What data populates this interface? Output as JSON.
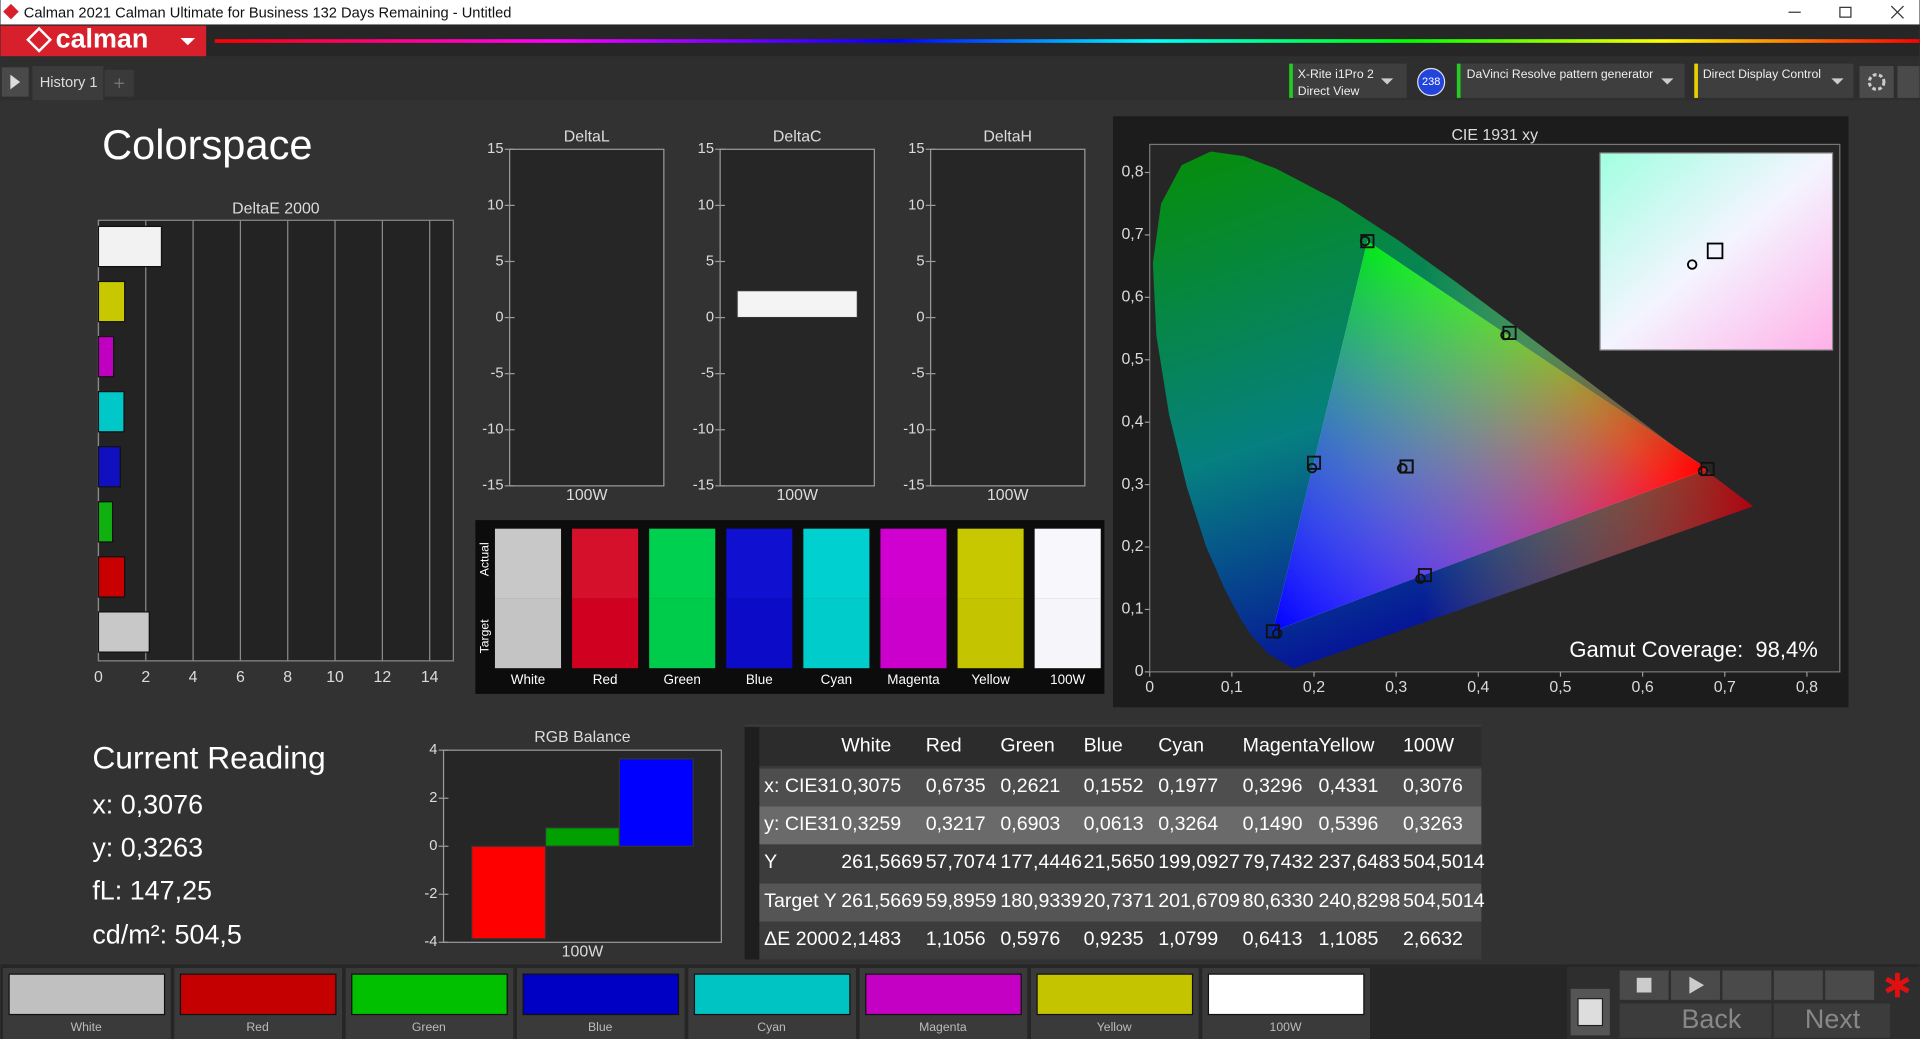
{
  "window": {
    "title": "Calman 2021 Calman Ultimate for Business 132 Days Remaining  - Untitled"
  },
  "toolbar": {
    "logo": "calman",
    "tab": "History 1",
    "meter": [
      "X-Rite i1Pro 2",
      "Direct View"
    ],
    "meter_badge": "238",
    "generator": "DaVinci Resolve pattern generator",
    "display": "Direct Display Control"
  },
  "page_title": "Colorspace",
  "chart_data": [
    {
      "type": "bar",
      "orientation": "horizontal",
      "title": "DeltaE 2000",
      "categories": [
        null,
        null,
        null,
        null,
        null,
        null,
        null,
        null
      ],
      "values": [
        2.6632,
        1.1085,
        0.6413,
        1.0799,
        0.9235,
        0.5976,
        1.1056,
        2.1483
      ],
      "colors": [
        "#f2f2f2",
        "#c8c800",
        "#c000c0",
        "#00c8c8",
        "#1010c0",
        "#10b010",
        "#c80000",
        "#c8c8c8"
      ],
      "xlim": [
        0,
        15
      ],
      "xticks": [
        0,
        2,
        4,
        6,
        8,
        10,
        12,
        14
      ],
      "grid": true
    },
    {
      "type": "bar",
      "title": "DeltaL",
      "categories": [
        "100W"
      ],
      "values": [
        0
      ],
      "color": "#f4f4f4",
      "ylim": [
        -15,
        15
      ],
      "yticks": [
        -15,
        -10,
        -5,
        0,
        5,
        10,
        15
      ]
    },
    {
      "type": "bar",
      "title": "DeltaC",
      "categories": [
        "100W"
      ],
      "values": [
        2.4
      ],
      "color": "#f4f4f4",
      "ylim": [
        -15,
        15
      ],
      "yticks": [
        -15,
        -10,
        -5,
        0,
        5,
        10,
        15
      ]
    },
    {
      "type": "bar",
      "title": "DeltaH",
      "categories": [
        "100W"
      ],
      "values": [
        0
      ],
      "color": "#f4f4f4",
      "ylim": [
        -15,
        15
      ],
      "yticks": [
        -15,
        -10,
        -5,
        0,
        5,
        10,
        15
      ]
    },
    {
      "type": "scatter",
      "title": "CIE 1931 xy",
      "xlim": [
        0,
        0.84
      ],
      "ylim": [
        0,
        0.845
      ],
      "xticks": [
        0,
        {
          "value": 0.1,
          "label": "0,1"
        },
        {
          "value": 0.2,
          "label": "0,2"
        },
        {
          "value": 0.3,
          "label": "0,3"
        },
        {
          "value": 0.4,
          "label": "0,4"
        },
        {
          "value": 0.5,
          "label": "0,5"
        },
        {
          "value": 0.6,
          "label": "0,6"
        },
        {
          "value": 0.7,
          "label": "0,7"
        },
        {
          "value": 0.8,
          "label": "0,8"
        }
      ],
      "yticks": [
        0,
        {
          "value": 0.1,
          "label": "0,1"
        },
        {
          "value": 0.2,
          "label": "0,2"
        },
        {
          "value": 0.3,
          "label": "0,3"
        },
        {
          "value": 0.4,
          "label": "0,4"
        },
        {
          "value": 0.5,
          "label": "0,5"
        },
        {
          "value": 0.6,
          "label": "0,6"
        },
        {
          "value": 0.7,
          "label": "0,7"
        },
        {
          "value": 0.8,
          "label": "0,8"
        }
      ],
      "series": [
        {
          "marker": "square",
          "x": [
            0.3127,
            0.679,
            0.265,
            0.15,
            0.2,
            0.335,
            0.438,
            0.3127
          ],
          "y": [
            0.329,
            0.325,
            0.69,
            0.065,
            0.335,
            0.155,
            0.543,
            0.329
          ]
        },
        {
          "marker": "circle",
          "x": [
            0.3075,
            0.6735,
            0.2621,
            0.1552,
            0.1977,
            0.3296,
            0.4331,
            0.3076
          ],
          "y": [
            0.3259,
            0.3217,
            0.6903,
            0.0613,
            0.3264,
            0.149,
            0.5396,
            0.3263
          ]
        }
      ],
      "annotation": "Gamut Coverage:  98,4%"
    },
    {
      "type": "bar",
      "title": "RGB Balance",
      "x_label": "100W",
      "categories": [
        null,
        null,
        null
      ],
      "values": [
        -3.85,
        0.77,
        3.64
      ],
      "colors": [
        "#ff0000",
        "#00a000",
        "#0000ff"
      ],
      "ylim": [
        -4,
        4
      ],
      "yticks": [
        -4,
        -2,
        0,
        2,
        4
      ]
    }
  ],
  "swatches": {
    "row_labels": [
      "Actual",
      "Target"
    ],
    "labels": [
      "White",
      "Red",
      "Green",
      "Blue",
      "Cyan",
      "Magenta",
      "Yellow",
      "100W"
    ],
    "actual_colors": [
      "#c8c8c8",
      "#d4102a",
      "#00d050",
      "#1010d0",
      "#00d0d0",
      "#d000d0",
      "#c8c800",
      "#f8f8fc"
    ],
    "target_colors": [
      "#c4c4c4",
      "#d00020",
      "#00cc4c",
      "#0c0cc8",
      "#00cccc",
      "#cc00cc",
      "#c4c400",
      "#f6f6fa"
    ]
  },
  "current_reading": {
    "title": "Current Reading",
    "lines": [
      "x: 0,3076",
      "y: 0,3263",
      "fL: 147,25",
      "cd/m²: 504,5"
    ]
  },
  "table": {
    "columns": [
      "White",
      "Red",
      "Green",
      "Blue",
      "Cyan",
      "Magenta",
      "Yellow",
      "100W"
    ],
    "rows": [
      [
        "x: CIE31",
        "0,3075",
        "0,6735",
        "0,2621",
        "0,1552",
        "0,1977",
        "0,3296",
        "0,4331",
        "0,3076"
      ],
      [
        "y: CIE31",
        "0,3259",
        "0,3217",
        "0,6903",
        "0,0613",
        "0,3264",
        "0,1490",
        "0,5396",
        "0,3263"
      ],
      [
        "Y",
        "261,5669",
        "57,7074",
        "177,4446",
        "21,5650",
        "199,0927",
        "79,7432",
        "237,6483",
        "504,5014"
      ],
      [
        "Target Y",
        "261,5669",
        "59,8959",
        "180,9339",
        "20,7371",
        "201,6709",
        "80,6330",
        "240,8298",
        "504,5014"
      ],
      [
        "ΔE 2000",
        "2,1483",
        "1,1056",
        "0,5976",
        "0,9235",
        "1,0799",
        "0,6413",
        "1,1085",
        "2,6632"
      ]
    ]
  },
  "nav": {
    "labels": [
      "White",
      "Red",
      "Green",
      "Blue",
      "Cyan",
      "Magenta",
      "Yellow",
      "100W"
    ],
    "colors": [
      "#c0c0c0",
      "#c40000",
      "#00c000",
      "#0000c4",
      "#00c4c4",
      "#c400c4",
      "#c4c400",
      "#ffffff"
    ],
    "back": "Back",
    "next": "Next"
  }
}
